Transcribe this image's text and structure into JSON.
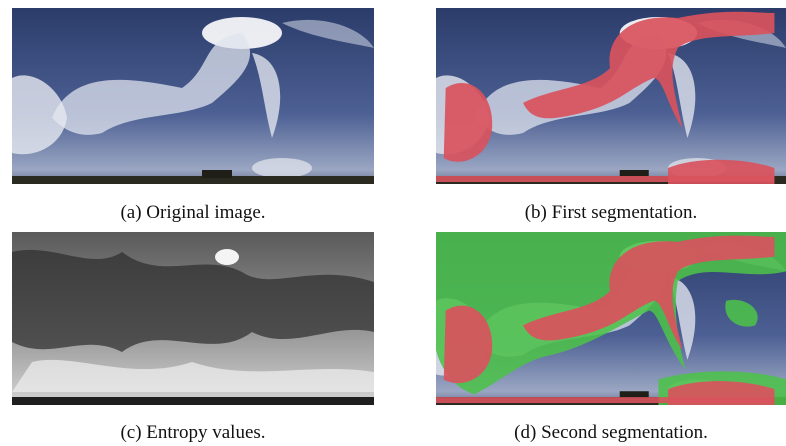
{
  "figures": [
    {
      "caption": "(a) Original image."
    },
    {
      "caption": "(b) First segmentation."
    },
    {
      "caption": "(c) Entropy values."
    },
    {
      "caption": "(d) Second segmentation."
    }
  ]
}
